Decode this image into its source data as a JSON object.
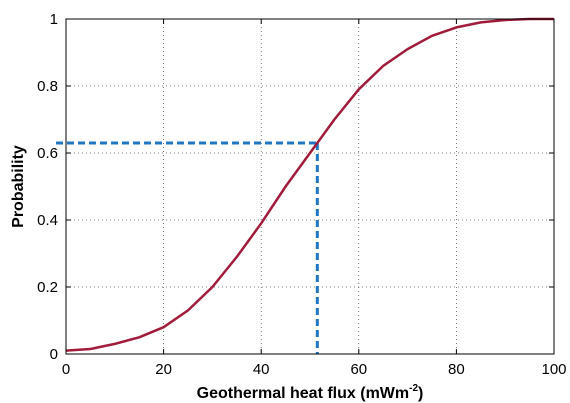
{
  "chart_data": {
    "type": "line",
    "title": "",
    "xlabel": "Geothermal heat flux (mWm",
    "xlabel_sup": "-2",
    "xlabel_close": ")",
    "ylabel": "Probability",
    "xlim": [
      0,
      100
    ],
    "ylim": [
      0,
      1
    ],
    "x_ticks": [
      0,
      20,
      40,
      60,
      80,
      100
    ],
    "y_ticks": [
      0,
      0.2,
      0.4,
      0.6,
      0.8,
      1
    ],
    "x_tick_labels": [
      "0",
      "20",
      "40",
      "60",
      "80",
      "100"
    ],
    "y_tick_labels": [
      "0",
      "0.2",
      "0.4",
      "0.6",
      "0.8",
      "1"
    ],
    "grid": true,
    "series": [
      {
        "color": "#a01c3a",
        "x": [
          0,
          5,
          10,
          15,
          20,
          25,
          30,
          35,
          40,
          45,
          50,
          55,
          60,
          65,
          70,
          75,
          80,
          85,
          90,
          95,
          100
        ],
        "y": [
          0.01,
          0.015,
          0.03,
          0.05,
          0.08,
          0.13,
          0.2,
          0.29,
          0.39,
          0.5,
          0.6,
          0.7,
          0.79,
          0.86,
          0.91,
          0.95,
          0.975,
          0.99,
          0.997,
          1.0,
          1.0
        ]
      }
    ],
    "reference_lines": {
      "color": "#1f77c4",
      "x": 51.5,
      "y": 0.63
    }
  }
}
